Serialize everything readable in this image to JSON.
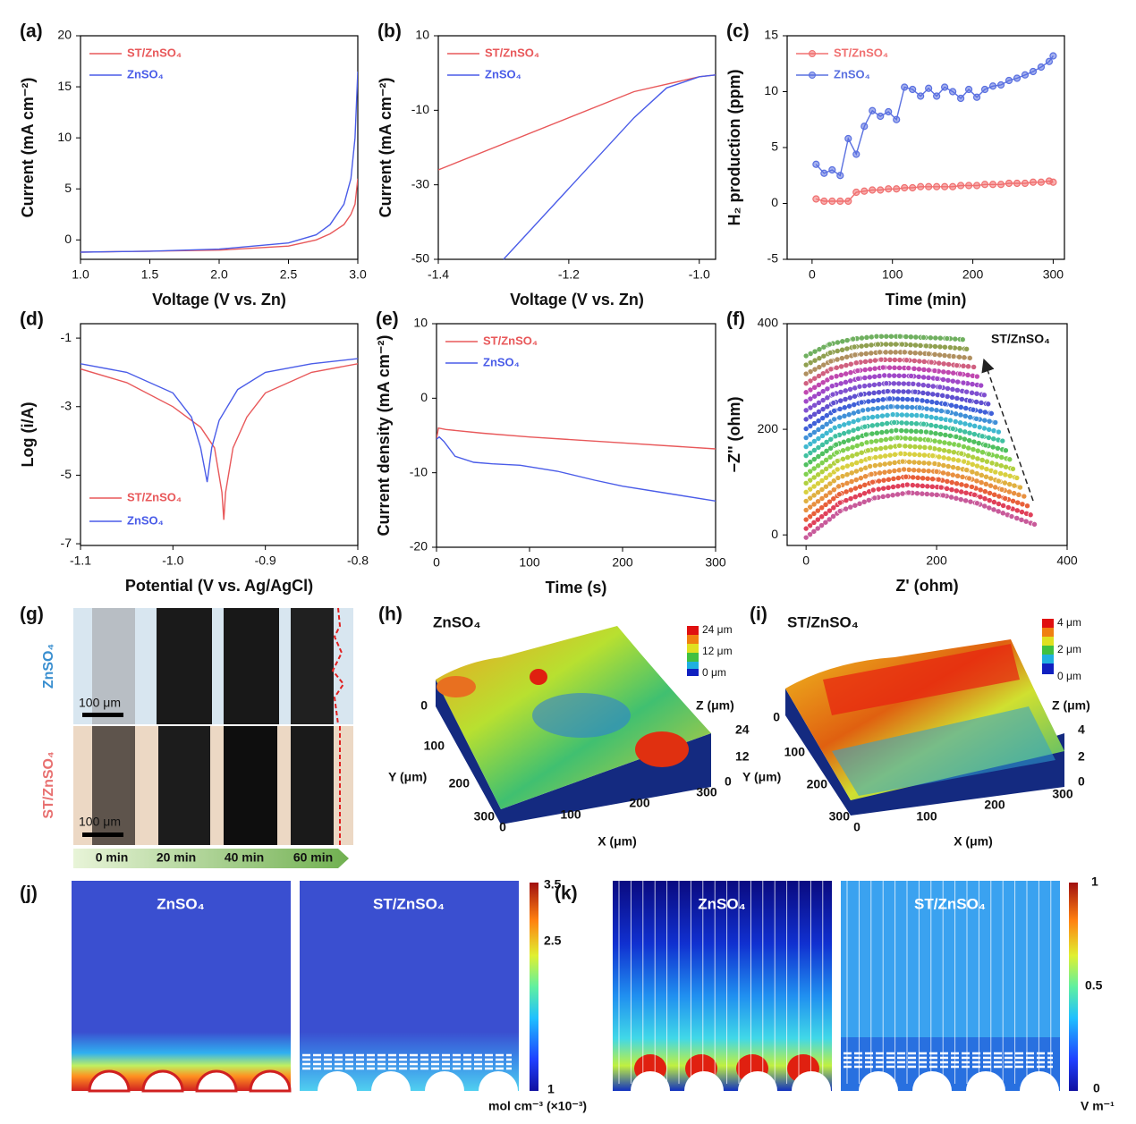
{
  "chart_data": [
    {
      "type": "line",
      "panel_label": "(a)",
      "xlabel": "Voltage (V vs. Zn)",
      "ylabel": "Current (mA cm⁻²)",
      "legend": "upper left",
      "xlim": [
        1.0,
        3.0
      ],
      "xticks": [
        {
          "value": 1,
          "label": "1.0"
        },
        1.5,
        {
          "value": 2,
          "label": "2.0"
        },
        2.5,
        {
          "value": 3,
          "label": "3.0"
        }
      ],
      "ylim": [
        -1.9,
        20
      ],
      "yticks": [
        0,
        5,
        10,
        15,
        20
      ],
      "series": [
        {
          "name": "ST/ZnSO₄",
          "color": "#e8585a",
          "x": [
            1.0,
            1.5,
            2.0,
            2.5,
            2.7,
            2.8,
            2.9,
            2.95,
            2.98,
            3.0
          ],
          "values": [
            -1.2,
            -1.1,
            -1.0,
            -0.6,
            0,
            0.6,
            1.5,
            2.5,
            3.5,
            6
          ]
        },
        {
          "name": "ZnSO₄",
          "color": "#4a5ce8",
          "x": [
            1.0,
            1.5,
            2.0,
            2.5,
            2.7,
            2.8,
            2.9,
            2.95,
            2.98,
            3.0
          ],
          "values": [
            -1.2,
            -1.1,
            -0.9,
            -0.3,
            0.5,
            1.5,
            3.5,
            6,
            10,
            16.5
          ]
        }
      ]
    },
    {
      "type": "line",
      "panel_label": "(b)",
      "xlabel": "Voltage (V vs. Zn)",
      "ylabel": "Current (mA cm⁻²)",
      "legend": "upper left",
      "xlim": [
        -1.4,
        -0.975
      ],
      "xticks": [
        -1.4,
        -1.2,
        {
          "value": -1,
          "label": "-1.0"
        }
      ],
      "ylim": [
        -50,
        10
      ],
      "yticks": [
        -50,
        -30,
        -10,
        10
      ],
      "series": [
        {
          "name": "ST/ZnSO₄",
          "color": "#e8585a",
          "x": [
            -1.4,
            -1.1,
            -1.0,
            -0.975
          ],
          "values": [
            -26,
            -5,
            -1,
            -0.5
          ]
        },
        {
          "name": "ZnSO₄",
          "color": "#4a5ce8",
          "x": [
            -1.3,
            -1.1,
            -1.05,
            -1.0,
            -0.975
          ],
          "values": [
            -50,
            -12,
            -4,
            -1,
            -0.5
          ]
        }
      ]
    },
    {
      "type": "line",
      "markers": true,
      "panel_label": "(c)",
      "xlabel": "Time (min)",
      "ylabel": "H₂ production (ppm)",
      "legend": "upper left",
      "xlim": [
        -31,
        314
      ],
      "xticks": [
        0,
        100,
        200,
        300
      ],
      "ylim": [
        -5,
        15
      ],
      "yticks": [
        -5,
        0,
        5,
        10,
        15
      ],
      "series": [
        {
          "name": "ST/ZnSO₄",
          "color": "#f07070",
          "x": [
            5,
            15,
            25,
            35,
            45,
            55,
            65,
            75,
            85,
            95,
            105,
            115,
            125,
            135,
            145,
            155,
            165,
            175,
            185,
            195,
            205,
            215,
            225,
            235,
            245,
            255,
            265,
            275,
            285,
            295,
            300
          ],
          "values": [
            0.4,
            0.2,
            0.2,
            0.2,
            0.2,
            1.0,
            1.1,
            1.2,
            1.2,
            1.3,
            1.3,
            1.4,
            1.4,
            1.5,
            1.5,
            1.5,
            1.5,
            1.5,
            1.6,
            1.6,
            1.6,
            1.7,
            1.7,
            1.7,
            1.8,
            1.8,
            1.8,
            1.9,
            1.9,
            2.0,
            1.9
          ]
        },
        {
          "name": "ZnSO₄",
          "color": "#5a70e0",
          "x": [
            5,
            15,
            25,
            35,
            45,
            55,
            65,
            75,
            85,
            95,
            105,
            115,
            125,
            135,
            145,
            155,
            165,
            175,
            185,
            195,
            205,
            215,
            225,
            235,
            245,
            255,
            265,
            275,
            285,
            295,
            300
          ],
          "values": [
            3.5,
            2.7,
            3.0,
            2.5,
            5.8,
            4.4,
            6.9,
            8.3,
            7.8,
            8.2,
            7.5,
            10.4,
            10.2,
            9.6,
            10.3,
            9.6,
            10.4,
            10.0,
            9.4,
            10.2,
            9.5,
            10.2,
            10.5,
            10.6,
            11.0,
            11.2,
            11.5,
            11.8,
            12.2,
            12.7,
            13.2
          ]
        }
      ]
    },
    {
      "type": "line",
      "panel_label": "(d)",
      "xlabel": "Potential (V vs. Ag/AgCl)",
      "ylabel": "Log (i/A)",
      "legend": "lower left",
      "xlim": [
        -1.1,
        -0.8
      ],
      "xticks": [
        -1.1,
        {
          "value": -1,
          "label": "-1.0"
        },
        -0.9,
        -0.8
      ],
      "ylim": [
        -7.05,
        -0.58
      ],
      "yticks": [
        -7,
        -5,
        -3,
        -1
      ],
      "series": [
        {
          "name": "ST/ZnSO₄",
          "color": "#e8585a",
          "x": [
            -1.1,
            -1.05,
            -1.0,
            -0.97,
            -0.955,
            -0.947,
            -0.945,
            -0.943,
            -0.935,
            -0.92,
            -0.9,
            -0.85,
            -0.8
          ],
          "values": [
            -1.9,
            -2.3,
            -3.0,
            -3.6,
            -4.2,
            -5.5,
            -6.3,
            -5.5,
            -4.2,
            -3.3,
            -2.6,
            -2.0,
            -1.75
          ]
        },
        {
          "name": "ZnSO₄",
          "color": "#4a5ce8",
          "x": [
            -1.1,
            -1.05,
            -1.0,
            -0.98,
            -0.97,
            -0.963,
            -0.958,
            -0.95,
            -0.93,
            -0.9,
            -0.85,
            -0.8
          ],
          "values": [
            -1.75,
            -2.0,
            -2.6,
            -3.3,
            -4.2,
            -5.2,
            -4.2,
            -3.4,
            -2.5,
            -2.0,
            -1.75,
            -1.6
          ]
        }
      ]
    },
    {
      "type": "line",
      "panel_label": "(e)",
      "xlabel": "Time (s)",
      "ylabel": "Current density (mA cm⁻²)",
      "legend": "upper left",
      "xlim": [
        0,
        300
      ],
      "xticks": [
        0,
        100,
        200,
        300
      ],
      "ylim": [
        -20,
        10
      ],
      "yticks": [
        -20,
        -10,
        0,
        10
      ],
      "series": [
        {
          "name": "ST/ZnSO₄",
          "color": "#e8585a",
          "x": [
            0,
            2,
            10,
            50,
            100,
            200,
            300
          ],
          "values": [
            -5.5,
            -4,
            -4.2,
            -4.7,
            -5.2,
            -6,
            -6.8
          ]
        },
        {
          "name": "ZnSO₄",
          "color": "#4a5ce8",
          "x": [
            0,
            3,
            8,
            20,
            40,
            60,
            90,
            130,
            170,
            200,
            250,
            300
          ],
          "values": [
            -5.5,
            -5.2,
            -5.8,
            -7.8,
            -8.6,
            -8.8,
            -9,
            -9.8,
            -11,
            -11.8,
            -12.8,
            -13.8
          ]
        }
      ]
    },
    {
      "type": "scatter",
      "panel_label": "(f)",
      "xlabel": "Z' (ohm)",
      "ylabel": "−Z'' (ohm)",
      "annotation": "ST/ZnSO₄",
      "xlim": [
        -29,
        400
      ],
      "xticks": [
        0,
        200,
        400
      ],
      "ylim": [
        -20,
        400
      ],
      "yticks": [
        0,
        200,
        400
      ],
      "series": [
        {
          "color": "#c85a9a",
          "x": [
            0,
            52,
            105,
            157,
            210,
            262,
            315,
            350
          ],
          "values": [
            -5,
            45,
            70,
            80,
            75,
            60,
            35,
            20
          ]
        },
        {
          "color": "#e0405a",
          "x": [
            0,
            52,
            103,
            155,
            207,
            258,
            310,
            344
          ],
          "values": [
            12,
            61,
            85,
            95,
            90,
            76,
            52,
            38
          ]
        },
        {
          "color": "#e8603a",
          "x": [
            0,
            51,
            102,
            153,
            203,
            254,
            305,
            339
          ],
          "values": [
            29,
            77,
            100,
            110,
            105,
            91,
            69,
            55
          ]
        },
        {
          "color": "#e89040",
          "x": [
            0,
            50,
            100,
            150,
            200,
            250,
            300,
            334
          ],
          "values": [
            47,
            92,
            115,
            124,
            120,
            107,
            86,
            73
          ]
        },
        {
          "color": "#e0b040",
          "x": [
            0,
            49,
            98,
            148,
            197,
            246,
            295,
            328
          ],
          "values": [
            64,
            108,
            130,
            139,
            135,
            123,
            102,
            90
          ]
        },
        {
          "color": "#d8d040",
          "x": [
            0,
            48,
            97,
            145,
            194,
            242,
            290,
            323
          ],
          "values": [
            81,
            124,
            145,
            154,
            150,
            139,
            119,
            108
          ]
        },
        {
          "color": "#b0d040",
          "x": [
            0,
            48,
            95,
            143,
            190,
            238,
            285,
            317
          ],
          "values": [
            98,
            140,
            160,
            169,
            165,
            154,
            136,
            125
          ]
        },
        {
          "color": "#80d050",
          "x": [
            0,
            47,
            93,
            140,
            187,
            234,
            280,
            312
          ],
          "values": [
            115,
            156,
            175,
            184,
            180,
            170,
            153,
            143
          ]
        },
        {
          "color": "#50c060",
          "x": [
            0,
            46,
            92,
            138,
            184,
            230,
            275,
            306
          ],
          "values": [
            133,
            171,
            190,
            198,
            195,
            186,
            170,
            160
          ]
        },
        {
          "color": "#40c0a0",
          "x": [
            0,
            45,
            90,
            135,
            180,
            225,
            270,
            301
          ],
          "values": [
            150,
            187,
            205,
            213,
            210,
            201,
            187,
            178
          ]
        },
        {
          "color": "#40b8d0",
          "x": [
            0,
            44,
            89,
            133,
            177,
            221,
            266,
            295
          ],
          "values": [
            167,
            203,
            221,
            228,
            226,
            217,
            204,
            195
          ]
        },
        {
          "color": "#4090d8",
          "x": [
            0,
            43,
            87,
            130,
            174,
            217,
            261,
            290
          ],
          "values": [
            184,
            219,
            236,
            243,
            241,
            233,
            220,
            213
          ]
        },
        {
          "color": "#4060d8",
          "x": [
            0,
            43,
            85,
            128,
            170,
            213,
            256,
            284
          ],
          "values": [
            201,
            235,
            251,
            258,
            256,
            248,
            237,
            230
          ]
        },
        {
          "color": "#6050d0",
          "x": [
            0,
            42,
            84,
            125,
            167,
            209,
            251,
            279
          ],
          "values": [
            219,
            250,
            266,
            272,
            271,
            264,
            254,
            248
          ]
        },
        {
          "color": "#8050d0",
          "x": [
            0,
            41,
            82,
            123,
            164,
            205,
            246,
            273
          ],
          "values": [
            236,
            266,
            281,
            287,
            286,
            280,
            271,
            265
          ]
        },
        {
          "color": "#a048c8",
          "x": [
            0,
            40,
            80,
            120,
            161,
            201,
            241,
            268
          ],
          "values": [
            253,
            282,
            296,
            302,
            301,
            296,
            288,
            283
          ]
        },
        {
          "color": "#c048b0",
          "x": [
            0,
            39,
            79,
            118,
            157,
            197,
            236,
            262
          ],
          "values": [
            270,
            298,
            311,
            317,
            316,
            311,
            305,
            300
          ]
        },
        {
          "color": "#d06080",
          "x": [
            0,
            38,
            77,
            115,
            154,
            192,
            231,
            257
          ],
          "values": [
            287,
            314,
            326,
            332,
            331,
            327,
            321,
            318
          ]
        },
        {
          "color": "#b09060",
          "x": [
            0,
            38,
            75,
            113,
            151,
            188,
            226,
            251
          ],
          "values": [
            305,
            329,
            341,
            346,
            346,
            343,
            338,
            335
          ]
        },
        {
          "color": "#90a050",
          "x": [
            0,
            37,
            74,
            110,
            147,
            184,
            221,
            246
          ],
          "values": [
            322,
            345,
            356,
            361,
            361,
            358,
            355,
            352
          ]
        },
        {
          "color": "#70b060",
          "x": [
            0,
            36,
            72,
            108,
            144,
            180,
            216,
            240
          ],
          "values": [
            339,
            361,
            371,
            376,
            376,
            374,
            372,
            370
          ]
        }
      ]
    }
  ],
  "figures": {
    "g": {
      "panel_label": "(g)",
      "rows": [
        "ZnSO₄",
        "ST/ZnSO₄"
      ],
      "scale_bars": [
        "100 μm",
        "100 μm"
      ],
      "times": [
        "0 min",
        "20 min",
        "40 min",
        "60 min"
      ]
    },
    "h": {
      "panel_label": "(h)",
      "title": "ZnSO₄",
      "colorbar": [
        "24 μm",
        "12 μm",
        "0 μm"
      ],
      "z_label": "Z (μm)",
      "z_ticks": [
        "24",
        "12",
        "0"
      ],
      "y_label": "Y (μm)",
      "y_ticks": [
        "0",
        "100",
        "200",
        "300"
      ],
      "x_label": "X (μm)",
      "x_ticks": [
        "0",
        "100",
        "200",
        "300"
      ]
    },
    "i": {
      "panel_label": "(i)",
      "title": "ST/ZnSO₄",
      "colorbar": [
        "4 μm",
        "2 μm",
        "0 μm"
      ],
      "z_label": "Z (μm)",
      "z_ticks": [
        "4",
        "2",
        "0"
      ],
      "y_label": "Y (μm)",
      "y_ticks": [
        "0",
        "100",
        "200",
        "300"
      ],
      "x_label": "X (μm)",
      "x_ticks": [
        "0",
        "100",
        "200",
        "300"
      ]
    },
    "j": {
      "panel_label": "(j)",
      "titles": [
        "ZnSO₄",
        "ST/ZnSO₄"
      ],
      "colorbar": [
        "3.5",
        "2.5",
        "1"
      ],
      "unit": "mol cm⁻³ (×10⁻³)"
    },
    "k": {
      "panel_label": "(k)",
      "titles": [
        "ZnSO₄",
        "ST/ZnSO₄"
      ],
      "colorbar": [
        "1",
        "0.5",
        "0"
      ],
      "unit": "V m⁻¹"
    }
  }
}
